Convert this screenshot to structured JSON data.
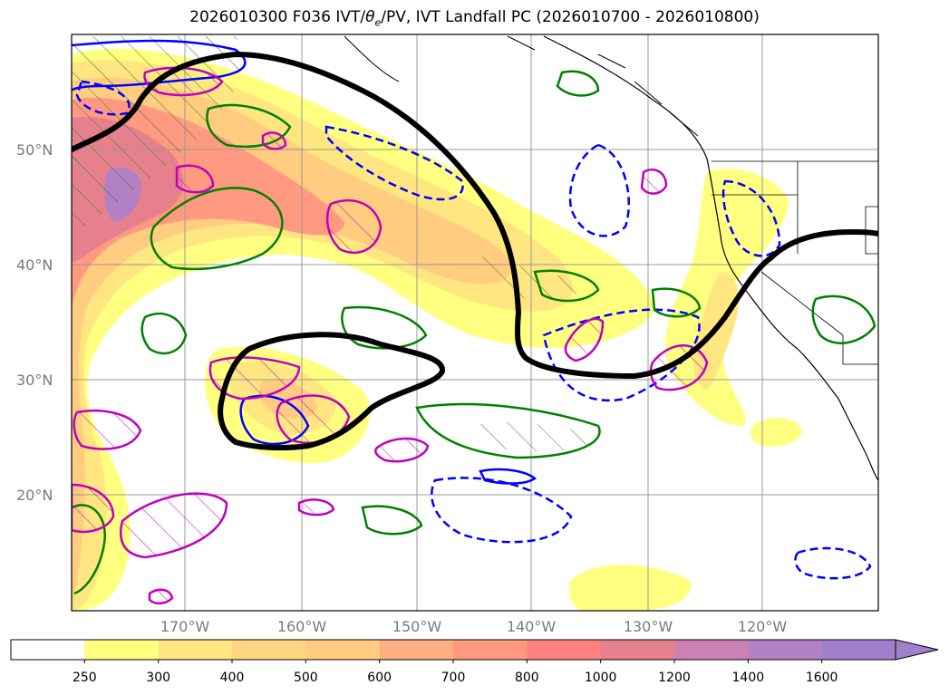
{
  "title_parts": {
    "pre": "2026010300 F036 IVT/",
    "theta": "θ",
    "sub": "e",
    "post": "/PV, IVT Landfall PC (2026010700 - 2026010800)"
  },
  "lat_labels": [
    "50°N",
    "40°N",
    "30°N",
    "20°N"
  ],
  "lon_labels": [
    "170°W",
    "160°W",
    "150°W",
    "140°W",
    "130°W",
    "120°W"
  ],
  "colorbar": {
    "ticks": [
      "250",
      "300",
      "400",
      "500",
      "600",
      "700",
      "800",
      "1000",
      "1200",
      "1400",
      "1600"
    ],
    "colors": [
      "#ffffff",
      "#ffff80",
      "#ffe680",
      "#ffd580",
      "#ffcc80",
      "#ffb080",
      "#ff9a80",
      "#ff8080",
      "#e6808c",
      "#cc80b3",
      "#b380c6",
      "#a080cc"
    ],
    "extend": "max"
  },
  "legend_note": "",
  "colors": {
    "pv_pos": "#0000ff",
    "theta_green": "#008000",
    "magenta": "#c000c0",
    "pc": "#000000"
  }
}
